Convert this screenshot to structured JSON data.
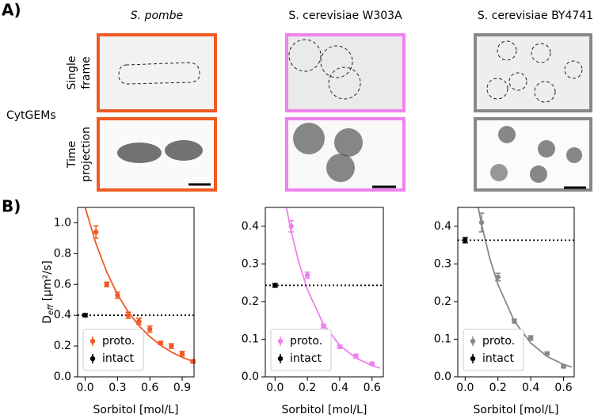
{
  "panel_a": {
    "label": "A)",
    "columns": [
      "S. pombe",
      "S. cerevisiae W303A",
      "S. cerevisiae BY4741"
    ],
    "rows": [
      [
        "Single",
        "frame"
      ],
      [
        "Time",
        "projection"
      ]
    ],
    "group_label": "CytGEMs"
  },
  "panel_b": {
    "label": "B)"
  },
  "chart_data": [
    {
      "type": "scatter",
      "ylabel": [
        "D",
        "eff",
        " [μm²/s]"
      ],
      "xlabel": "Sorbitol  [mol/L]",
      "legend": "lower left",
      "xlim": [
        -0.07,
        1.01
      ],
      "ylim": [
        0,
        1.1
      ],
      "xticks": [
        {
          "value": 0,
          "label": "0.0"
        },
        0.3,
        0.6,
        0.9
      ],
      "yticks": [
        {
          "value": 0,
          "label": "0.0"
        },
        0.2,
        0.4,
        0.6,
        0.8,
        {
          "value": 1,
          "label": "1.0"
        }
      ],
      "series": [
        {
          "name": "proto.",
          "color": "#f05a23",
          "x": [
            0.1,
            0.2,
            0.3,
            0.4,
            0.5,
            0.6,
            0.7,
            0.8,
            0.9,
            1.0
          ],
          "values": [
            0.94,
            0.6,
            0.53,
            0.4,
            0.36,
            0.31,
            0.22,
            0.2,
            0.15,
            0.1
          ],
          "errors": [
            0.04,
            0.015,
            0.02,
            0.02,
            0.02,
            0.02,
            0.01,
            0.015,
            0.015,
            0.01
          ]
        },
        {
          "name": "intact",
          "color": "#000000",
          "x": [
            0
          ],
          "values": [
            0.4
          ],
          "errors": [
            0.01
          ]
        }
      ],
      "fit": {
        "x": [
          0,
          0.1,
          0.2,
          0.3,
          0.4,
          0.5,
          0.6,
          0.7,
          0.8,
          0.9,
          1.0
        ],
        "values": [
          1.1,
          0.865,
          0.681,
          0.535,
          0.421,
          0.331,
          0.261,
          0.205,
          0.161,
          0.127,
          0.1
        ]
      }
    },
    {
      "type": "scatter",
      "xlabel": "Sorbitol  [mol/L]",
      "legend": "lower left",
      "xlim": [
        -0.06,
        0.67
      ],
      "ylim": [
        0,
        0.45
      ],
      "xticks": [
        {
          "value": 0,
          "label": "0.0"
        },
        0.2,
        0.4,
        0.6
      ],
      "yticks": [
        {
          "value": 0,
          "label": "0.0"
        },
        0.1,
        0.2,
        0.3,
        0.4
      ],
      "series": [
        {
          "name": "proto.",
          "color": "#ee82ee",
          "x": [
            0.1,
            0.2,
            0.3,
            0.4,
            0.5,
            0.6
          ],
          "values": [
            0.4,
            0.27,
            0.135,
            0.08,
            0.055,
            0.035
          ],
          "errors": [
            0.015,
            0.008,
            0.005,
            0.004,
            0.005,
            0.004
          ]
        },
        {
          "name": "intact",
          "color": "#000000",
          "x": [
            0
          ],
          "values": [
            0.243
          ],
          "errors": [
            0.005
          ]
        }
      ],
      "fit": {
        "x": [
          0.07,
          0.1,
          0.15,
          0.2,
          0.3,
          0.4,
          0.5,
          0.6,
          0.65
        ],
        "values": [
          0.45,
          0.386,
          0.3,
          0.232,
          0.139,
          0.084,
          0.05,
          0.03,
          0.023
        ]
      }
    },
    {
      "type": "scatter",
      "xlabel": "Sorbitol  [mol/L]",
      "legend": "lower left",
      "xlim": [
        -0.045,
        0.665
      ],
      "ylim": [
        0,
        0.45
      ],
      "xticks": [
        {
          "value": 0,
          "label": "0.0"
        },
        0.2,
        0.4,
        0.6
      ],
      "yticks": [
        {
          "value": 0,
          "label": "0.0"
        },
        0.1,
        0.2,
        0.3,
        0.4
      ],
      "series": [
        {
          "name": "proto.",
          "color": "#888888",
          "x": [
            0.1,
            0.2,
            0.3,
            0.4,
            0.5,
            0.6
          ],
          "values": [
            0.41,
            0.265,
            0.148,
            0.103,
            0.062,
            0.028
          ],
          "errors": [
            0.025,
            0.01,
            0.005,
            0.006,
            0.004,
            0.004
          ]
        },
        {
          "name": "intact",
          "color": "#000000",
          "x": [
            0
          ],
          "values": [
            0.363
          ],
          "errors": [
            0.007
          ]
        }
      ],
      "fit": {
        "x": [
          0.08,
          0.1,
          0.15,
          0.2,
          0.3,
          0.4,
          0.5,
          0.6,
          0.65
        ],
        "values": [
          0.45,
          0.405,
          0.315,
          0.245,
          0.148,
          0.09,
          0.054,
          0.033,
          0.026
        ]
      }
    }
  ]
}
